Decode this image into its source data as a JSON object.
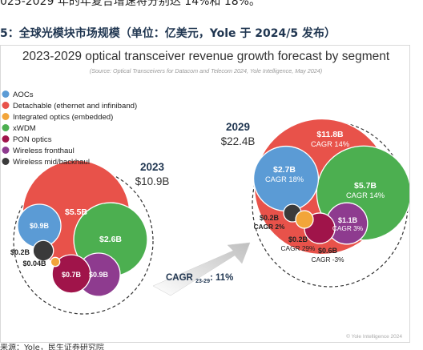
{
  "page": {
    "top_text": "025-2029 年的年复合增速将分别达 14%和 18%。",
    "figure_caption": "5：全球光模块市场规模（单位：亿美元，Yole 于 2024/5 发布）",
    "footer_text": "来源：Yole，民生证券研究院"
  },
  "chart_data": {
    "type": "bubble",
    "title": "2023-2029 optical transceiver revenue growth forecast by segment",
    "subtitle": "(Source: Optical Transceivers for Datacom and Telecom 2024, Yole Intelligence, May 2024)",
    "legend_position": "top-left",
    "series": [
      {
        "name": "AOCs",
        "color": "#5b9bd5"
      },
      {
        "name": "Detachable (ethernet and infiniband)",
        "color": "#e8524a"
      },
      {
        "name": "Integrated optics (embedded)",
        "color": "#f2a53a"
      },
      {
        "name": "xWDM",
        "color": "#4caf50"
      },
      {
        "name": "PON optics",
        "color": "#a0144a"
      },
      {
        "name": "Wireless fronthaul",
        "color": "#8e3b8f"
      },
      {
        "name": "Wireless mid/backhaul",
        "color": "#3a3a3a"
      }
    ],
    "groups": [
      {
        "year": "2023",
        "total_label": "$10.9B",
        "segments": [
          {
            "series": "Detachable (ethernet and infiniband)",
            "value": 5.5,
            "value_label": "$5.5B"
          },
          {
            "series": "xWDM",
            "value": 2.6,
            "value_label": "$2.6B"
          },
          {
            "series": "AOCs",
            "value": 0.9,
            "value_label": "$0.9B"
          },
          {
            "series": "PON optics",
            "value": 0.7,
            "value_label": "$0.7B"
          },
          {
            "series": "Wireless fronthaul",
            "value": 0.9,
            "value_label": "$0.9B"
          },
          {
            "series": "Wireless mid/backhaul",
            "value": 0.2,
            "value_label": "$0.2B"
          },
          {
            "series": "Integrated optics (embedded)",
            "value": 0.04,
            "value_label": "$0.04B"
          }
        ]
      },
      {
        "year": "2029",
        "total_label": "$22.4B",
        "segments": [
          {
            "series": "Detachable (ethernet and infiniband)",
            "value": 11.8,
            "value_label": "$11.8B",
            "cagr": "CAGR 14%"
          },
          {
            "series": "xWDM",
            "value": 5.7,
            "value_label": "$5.7B",
            "cagr": "CAGR 14%"
          },
          {
            "series": "AOCs",
            "value": 2.7,
            "value_label": "$2.7B",
            "cagr": "CAGR 18%"
          },
          {
            "series": "Wireless fronthaul",
            "value": 1.1,
            "value_label": "$1.1B",
            "cagr": "CAGR 3%"
          },
          {
            "series": "PON optics",
            "value": 0.6,
            "value_label": "$0.6B",
            "cagr": "CAGR -3%"
          },
          {
            "series": "Wireless mid/backhaul",
            "value": 0.2,
            "value_label": "$0.2B",
            "cagr": "CAGR 2%"
          },
          {
            "series": "Integrated optics (embedded)",
            "value": 0.2,
            "value_label": "$0.2B",
            "cagr": "CAGR 29%"
          }
        ]
      }
    ],
    "total_cagr": {
      "label": "CAGR",
      "subscript": "23-29",
      "value": ": 11%"
    },
    "credit": "© Yole Intelligence 2024"
  }
}
